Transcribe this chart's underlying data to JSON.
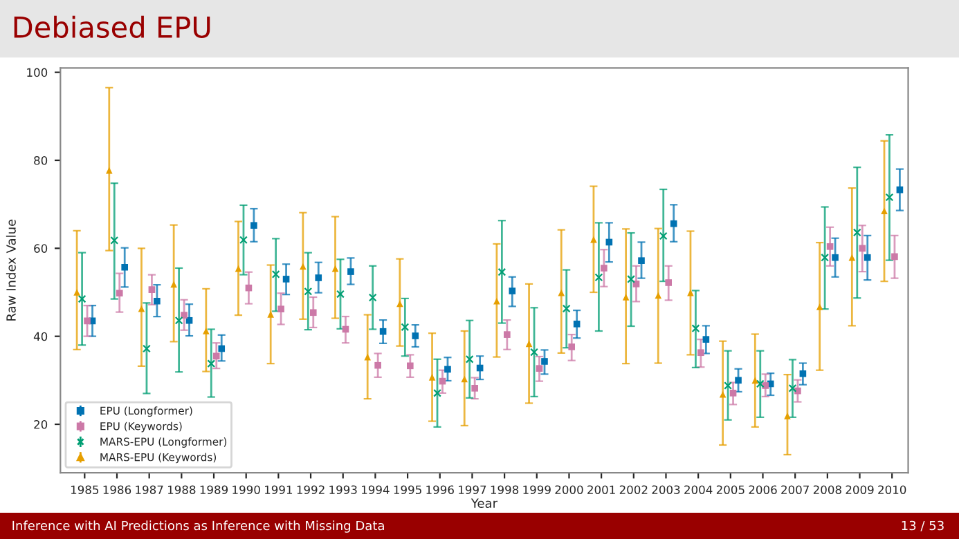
{
  "chart_data": {
    "type": "scatter",
    "title": "Debiased EPU",
    "xlabel": "Year",
    "ylabel": "Raw Index Value",
    "categories": [
      "1985",
      "1986",
      "1987",
      "1988",
      "1989",
      "1990",
      "1991",
      "1992",
      "1993",
      "1994",
      "1995",
      "1996",
      "1997",
      "1998",
      "1999",
      "2000",
      "2001",
      "2002",
      "2003",
      "2004",
      "2005",
      "2006",
      "2007",
      "2008",
      "2009",
      "2010"
    ],
    "ylim": [
      9,
      101
    ],
    "yticks": [
      20,
      40,
      60,
      80,
      100
    ],
    "grid": false,
    "legend": "bottom left",
    "annotations": [
      "Inference with AI Predictions as Inference with Missing Data",
      "13 / 53"
    ],
    "series": [
      {
        "name": "EPU (Longformer)",
        "color": "#0072b2",
        "marker": "square",
        "values": [
          43.5,
          55.7,
          48,
          43.6,
          37.2,
          65.2,
          53,
          53.3,
          54.7,
          41.1,
          40.1,
          32.5,
          32.8,
          50.3,
          34.3,
          42.8,
          61.4,
          57.2,
          65.6,
          39.3,
          30,
          29.2,
          31.5,
          57.9,
          57.9,
          73.3
        ],
        "errors": [
          [
            40,
            47
          ],
          [
            51.2,
            60.1
          ],
          [
            44.5,
            51.7
          ],
          [
            40.1,
            47.3
          ],
          [
            34.4,
            40.3
          ],
          [
            61.5,
            69
          ],
          [
            49.5,
            56.4
          ],
          [
            49.9,
            56.8
          ],
          [
            51.8,
            57.8
          ],
          [
            38.4,
            43.7
          ],
          [
            37.6,
            42.6
          ],
          [
            29.9,
            35.2
          ],
          [
            30.2,
            35.5
          ],
          [
            46.8,
            53.5
          ],
          [
            31.4,
            36.9
          ],
          [
            39.6,
            45.9
          ],
          [
            56.9,
            65.8
          ],
          [
            53.2,
            61.4
          ],
          [
            61.5,
            69.9
          ],
          [
            36.1,
            42.4
          ],
          [
            27.4,
            32.6
          ],
          [
            26.6,
            31.6
          ],
          [
            29,
            33.9
          ],
          [
            53.5,
            62.3
          ],
          [
            52.8,
            62.9
          ],
          [
            68.6,
            78
          ]
        ]
      },
      {
        "name": "EPU (Keywords)",
        "color": "#cc79a7",
        "marker": "square",
        "values": [
          43.5,
          49.8,
          50.6,
          44.8,
          35.5,
          51,
          46.2,
          45.4,
          41.6,
          33.4,
          33.3,
          29.8,
          28.2,
          40.4,
          32.7,
          37.6,
          55.5,
          51.9,
          52.2,
          36.3,
          27.1,
          28.8,
          27.6,
          60.4,
          60,
          58.1
        ],
        "errors": [
          [
            40,
            47
          ],
          [
            45.5,
            54.3
          ],
          [
            47.2,
            54
          ],
          [
            41.4,
            48.3
          ],
          [
            32.7,
            38.5
          ],
          [
            47.4,
            54.6
          ],
          [
            42.7,
            49.8
          ],
          [
            42,
            48.9
          ],
          [
            38.5,
            44.5
          ],
          [
            30.7,
            36.1
          ],
          [
            30.7,
            35.8
          ],
          [
            27.1,
            32.3
          ],
          [
            25.8,
            30.6
          ],
          [
            37,
            43.7
          ],
          [
            29.8,
            35.4
          ],
          [
            34.5,
            40.4
          ],
          [
            51.3,
            59.7
          ],
          [
            47.9,
            56
          ],
          [
            48.2,
            56
          ],
          [
            33,
            39.3
          ],
          [
            24.5,
            29.5
          ],
          [
            26.3,
            31.4
          ],
          [
            25.1,
            30.1
          ],
          [
            56,
            64.8
          ],
          [
            54.7,
            65.2
          ],
          [
            53.2,
            62.9
          ]
        ]
      },
      {
        "name": "MARS-EPU (Longformer)",
        "color": "#009e73",
        "marker": "cross",
        "values": [
          48.5,
          61.8,
          37.2,
          43.6,
          33.8,
          61.9,
          54.1,
          50.2,
          49.6,
          48.8,
          42.1,
          27.1,
          34.8,
          54.6,
          36.4,
          46.3,
          53.4,
          53,
          62.8,
          41.8,
          28.8,
          29.2,
          28.2,
          57.9,
          63.6,
          71.6
        ],
        "errors": [
          [
            38,
            59
          ],
          [
            48.5,
            74.8
          ],
          [
            27,
            47.6
          ],
          [
            31.9,
            55.5
          ],
          [
            26.2,
            41.6
          ],
          [
            54,
            69.8
          ],
          [
            45.7,
            62.2
          ],
          [
            41.5,
            59
          ],
          [
            41.7,
            57.5
          ],
          [
            41.6,
            56
          ],
          [
            35.5,
            48.6
          ],
          [
            19.4,
            34.8
          ],
          [
            26,
            43.6
          ],
          [
            43,
            66.3
          ],
          [
            26.3,
            46.5
          ],
          [
            37.4,
            55.1
          ],
          [
            41.2,
            65.8
          ],
          [
            42.3,
            63.5
          ],
          [
            52.5,
            73.4
          ],
          [
            32.9,
            50.4
          ],
          [
            21,
            36.7
          ],
          [
            21.6,
            36.7
          ],
          [
            21.6,
            34.7
          ],
          [
            46.2,
            69.4
          ],
          [
            48.7,
            78.4
          ],
          [
            57.3,
            85.8
          ]
        ]
      },
      {
        "name": "MARS-EPU (Keywords)",
        "color": "#e69f00",
        "marker": "triangle",
        "values": [
          50,
          77.7,
          46.3,
          51.8,
          41.2,
          55.4,
          45,
          55.9,
          55.4,
          35.3,
          47.4,
          30.7,
          30.3,
          48,
          38.3,
          49.9,
          62,
          48.9,
          49.3,
          49.9,
          26.8,
          30,
          21.9,
          46.7,
          57.9,
          68.5
        ],
        "errors": [
          [
            37,
            64
          ],
          [
            59.5,
            96.5
          ],
          [
            33.2,
            60
          ],
          [
            38.8,
            65.3
          ],
          [
            32,
            50.8
          ],
          [
            44.8,
            66.1
          ],
          [
            33.8,
            56.2
          ],
          [
            43.9,
            68.1
          ],
          [
            44.1,
            67.2
          ],
          [
            25.8,
            44.9
          ],
          [
            37.8,
            57.6
          ],
          [
            20.7,
            40.7
          ],
          [
            19.7,
            41.2
          ],
          [
            35.3,
            61
          ],
          [
            24.8,
            51.9
          ],
          [
            36.2,
            64.2
          ],
          [
            50,
            74.1
          ],
          [
            33.8,
            64.4
          ],
          [
            33.9,
            64.5
          ],
          [
            35.8,
            63.9
          ],
          [
            15.3,
            38.9
          ],
          [
            19.4,
            40.5
          ],
          [
            13.1,
            31.3
          ],
          [
            32.3,
            61.3
          ],
          [
            42.4,
            73.7
          ],
          [
            52.5,
            84.4
          ]
        ]
      }
    ]
  }
}
